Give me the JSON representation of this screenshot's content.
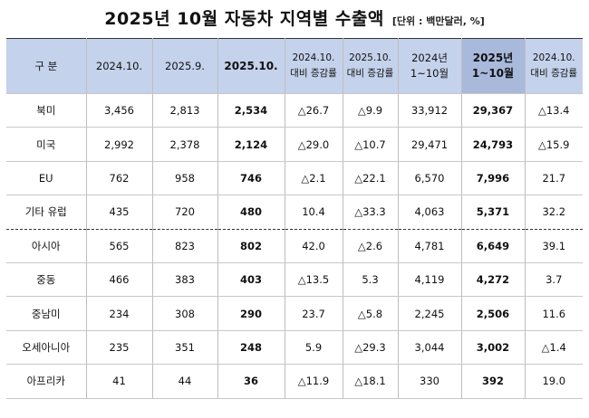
{
  "title": "2025년 10월 자동차 지역별 수출액",
  "unit": "[단위 : 백만달러, %]",
  "headers": [
    {
      "l1": "구 분",
      "l2": ""
    },
    {
      "l1": "2024.10.",
      "l2": ""
    },
    {
      "l1": "2025.9.",
      "l2": ""
    },
    {
      "l1": "2025.10.",
      "l2": ""
    },
    {
      "l1": "2024.10.",
      "l2": "대비 증감률"
    },
    {
      "l1": "2025.10.",
      "l2": "대비 증감률"
    },
    {
      "l1": "2024년",
      "l2": "1~10월"
    },
    {
      "l1": "2025년",
      "l2": "1~10월"
    },
    {
      "l1": "2024.10.",
      "l2": "대비 증감률"
    }
  ],
  "rows": [
    {
      "region": "북미",
      "v2024_10": "3,456",
      "v2025_9": "2,813",
      "v2025_10": "2,534",
      "chg_yoy": "△26.7",
      "chg_mom": "△9.9",
      "cum2024": "33,912",
      "cum2025": "29,367",
      "chg_cum": "△13.4"
    },
    {
      "region": "미국",
      "v2024_10": "2,992",
      "v2025_9": "2,378",
      "v2025_10": "2,124",
      "chg_yoy": "△29.0",
      "chg_mom": "△10.7",
      "cum2024": "29,471",
      "cum2025": "24,793",
      "chg_cum": "△15.9"
    },
    {
      "region": "EU",
      "v2024_10": "762",
      "v2025_9": "958",
      "v2025_10": "746",
      "chg_yoy": "△2.1",
      "chg_mom": "△22.1",
      "cum2024": "6,570",
      "cum2025": "7,996",
      "chg_cum": "21.7"
    },
    {
      "region": "기타 유럽",
      "v2024_10": "435",
      "v2025_9": "720",
      "v2025_10": "480",
      "chg_yoy": "10.4",
      "chg_mom": "△33.3",
      "cum2024": "4,063",
      "cum2025": "5,371",
      "chg_cum": "32.2"
    },
    {
      "region": "아시아",
      "v2024_10": "565",
      "v2025_9": "823",
      "v2025_10": "802",
      "chg_yoy": "42.0",
      "chg_mom": "△2.6",
      "cum2024": "4,781",
      "cum2025": "6,649",
      "chg_cum": "39.1"
    },
    {
      "region": "중동",
      "v2024_10": "466",
      "v2025_9": "383",
      "v2025_10": "403",
      "chg_yoy": "△13.5",
      "chg_mom": "5.3",
      "cum2024": "4,119",
      "cum2025": "4,272",
      "chg_cum": "3.7"
    },
    {
      "region": "중남미",
      "v2024_10": "234",
      "v2025_9": "308",
      "v2025_10": "290",
      "chg_yoy": "23.7",
      "chg_mom": "△5.8",
      "cum2024": "2,245",
      "cum2025": "2,506",
      "chg_cum": "11.6"
    },
    {
      "region": "오세아니아",
      "v2024_10": "235",
      "v2025_9": "351",
      "v2025_10": "248",
      "chg_yoy": "5.9",
      "chg_mom": "△29.3",
      "cum2024": "3,044",
      "cum2025": "3,002",
      "chg_cum": "△1.4"
    },
    {
      "region": "아프리카",
      "v2024_10": "41",
      "v2025_9": "44",
      "v2025_10": "36",
      "chg_yoy": "△11.9",
      "chg_mom": "△18.1",
      "cum2024": "330",
      "cum2025": "392",
      "chg_cum": "19.0"
    }
  ]
}
